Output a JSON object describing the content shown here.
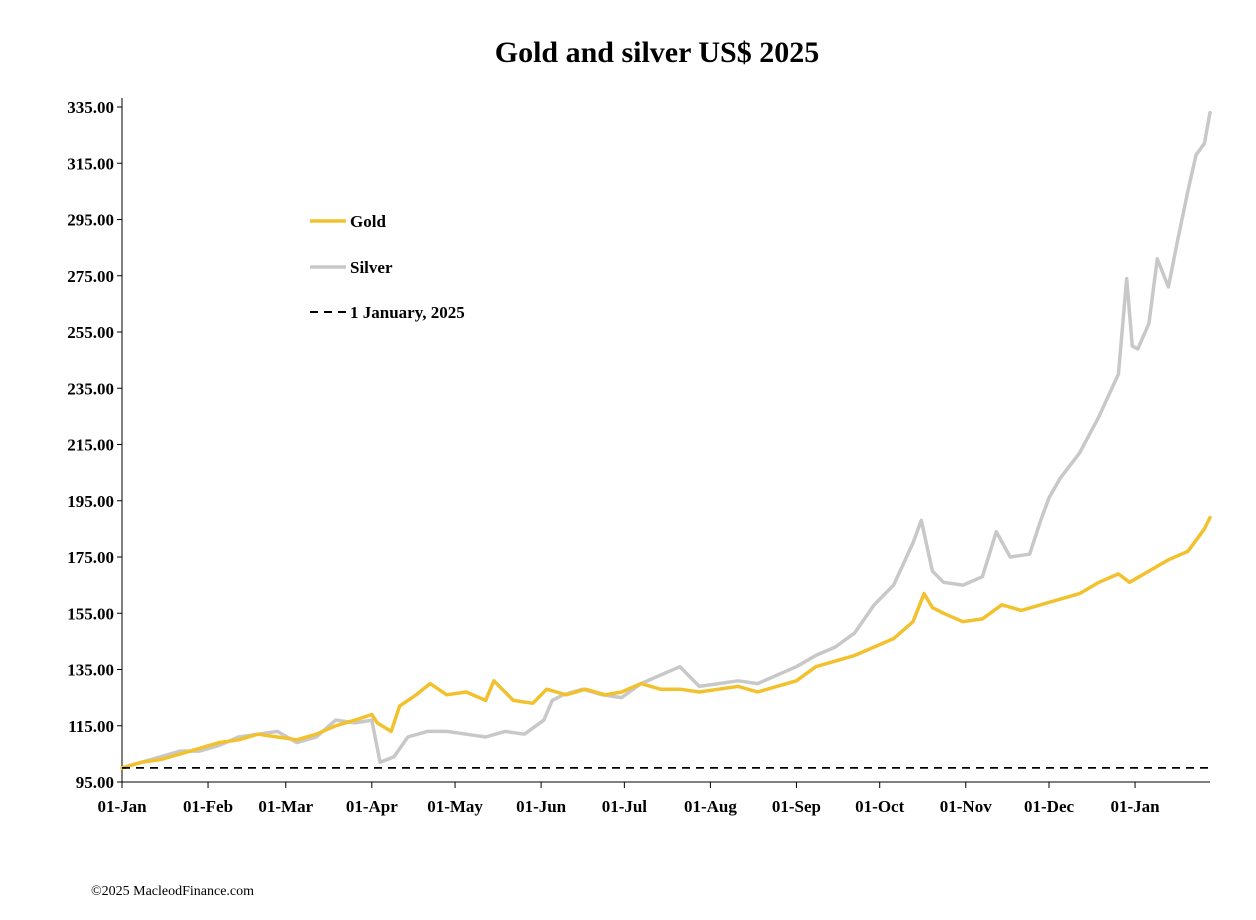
{
  "chart_data": {
    "type": "line",
    "title": "Gold and silver  US$ 2025",
    "xlabel": "",
    "ylabel": "",
    "y_tick_labels": [
      "95.00",
      "115.00",
      "135.00",
      "155.00",
      "175.00",
      "195.00",
      "215.00",
      "235.00",
      "255.00",
      "275.00",
      "295.00",
      "315.00",
      "335.00"
    ],
    "ylim": [
      95,
      335
    ],
    "x_tick_labels": [
      "01-Jan",
      "01-Feb",
      "01-Mar",
      "01-Apr",
      "01-May",
      "01-Jun",
      "01-Jul",
      "01-Aug",
      "01-Sep",
      "01-Oct",
      "01-Nov",
      "01-Dec",
      "01-Jan"
    ],
    "x_tick_dates": [
      "2025-01-01",
      "2025-02-01",
      "2025-03-01",
      "2025-04-01",
      "2025-05-01",
      "2025-06-01",
      "2025-07-01",
      "2025-08-01",
      "2025-09-01",
      "2025-10-01",
      "2025-11-01",
      "2025-12-01",
      "2026-01-01"
    ],
    "xlim": [
      "2025-01-01",
      "2026-01-28"
    ],
    "grid": false,
    "legend_position": "upper-left",
    "series": [
      {
        "name": "Gold",
        "color": "#F2C12E",
        "style": "solid",
        "points": [
          [
            "2025-01-01",
            100
          ],
          [
            "2025-01-08",
            102
          ],
          [
            "2025-01-15",
            103
          ],
          [
            "2025-01-22",
            105
          ],
          [
            "2025-01-29",
            107
          ],
          [
            "2025-02-05",
            109
          ],
          [
            "2025-02-12",
            110
          ],
          [
            "2025-02-19",
            112
          ],
          [
            "2025-02-26",
            111
          ],
          [
            "2025-03-05",
            110
          ],
          [
            "2025-03-12",
            112
          ],
          [
            "2025-03-19",
            115
          ],
          [
            "2025-03-26",
            117
          ],
          [
            "2025-04-01",
            119
          ],
          [
            "2025-04-03",
            116
          ],
          [
            "2025-04-08",
            113
          ],
          [
            "2025-04-11",
            122
          ],
          [
            "2025-04-17",
            126
          ],
          [
            "2025-04-22",
            130
          ],
          [
            "2025-04-28",
            126
          ],
          [
            "2025-05-05",
            127
          ],
          [
            "2025-05-12",
            124
          ],
          [
            "2025-05-15",
            131
          ],
          [
            "2025-05-22",
            124
          ],
          [
            "2025-05-29",
            123
          ],
          [
            "2025-06-03",
            128
          ],
          [
            "2025-06-10",
            126
          ],
          [
            "2025-06-17",
            128
          ],
          [
            "2025-06-24",
            126
          ],
          [
            "2025-06-30",
            127
          ],
          [
            "2025-07-07",
            130
          ],
          [
            "2025-07-14",
            128
          ],
          [
            "2025-07-21",
            128
          ],
          [
            "2025-07-28",
            127
          ],
          [
            "2025-08-04",
            128
          ],
          [
            "2025-08-11",
            129
          ],
          [
            "2025-08-18",
            127
          ],
          [
            "2025-08-25",
            129
          ],
          [
            "2025-09-01",
            131
          ],
          [
            "2025-09-08",
            136
          ],
          [
            "2025-09-15",
            138
          ],
          [
            "2025-09-22",
            140
          ],
          [
            "2025-09-29",
            143
          ],
          [
            "2025-10-06",
            146
          ],
          [
            "2025-10-13",
            152
          ],
          [
            "2025-10-17",
            162
          ],
          [
            "2025-10-20",
            157
          ],
          [
            "2025-10-24",
            155
          ],
          [
            "2025-10-31",
            152
          ],
          [
            "2025-11-07",
            153
          ],
          [
            "2025-11-14",
            158
          ],
          [
            "2025-11-21",
            156
          ],
          [
            "2025-11-28",
            158
          ],
          [
            "2025-12-05",
            160
          ],
          [
            "2025-12-12",
            162
          ],
          [
            "2025-12-19",
            166
          ],
          [
            "2025-12-26",
            169
          ],
          [
            "2025-12-30",
            166
          ],
          [
            "2026-01-06",
            170
          ],
          [
            "2026-01-13",
            174
          ],
          [
            "2026-01-20",
            177
          ],
          [
            "2026-01-26",
            185
          ],
          [
            "2026-01-28",
            189
          ]
        ]
      },
      {
        "name": "Silver",
        "color": "#C8C8C8",
        "style": "solid",
        "points": [
          [
            "2025-01-01",
            100
          ],
          [
            "2025-01-08",
            102
          ],
          [
            "2025-01-15",
            104
          ],
          [
            "2025-01-22",
            106
          ],
          [
            "2025-01-29",
            106
          ],
          [
            "2025-02-05",
            108
          ],
          [
            "2025-02-12",
            111
          ],
          [
            "2025-02-19",
            112
          ],
          [
            "2025-02-26",
            113
          ],
          [
            "2025-03-05",
            109
          ],
          [
            "2025-03-12",
            111
          ],
          [
            "2025-03-19",
            117
          ],
          [
            "2025-03-26",
            116
          ],
          [
            "2025-04-01",
            117
          ],
          [
            "2025-04-04",
            102
          ],
          [
            "2025-04-09",
            104
          ],
          [
            "2025-04-14",
            111
          ],
          [
            "2025-04-21",
            113
          ],
          [
            "2025-04-28",
            113
          ],
          [
            "2025-05-05",
            112
          ],
          [
            "2025-05-12",
            111
          ],
          [
            "2025-05-19",
            113
          ],
          [
            "2025-05-26",
            112
          ],
          [
            "2025-06-02",
            117
          ],
          [
            "2025-06-05",
            124
          ],
          [
            "2025-06-09",
            126
          ],
          [
            "2025-06-16",
            128
          ],
          [
            "2025-06-23",
            126
          ],
          [
            "2025-06-30",
            125
          ],
          [
            "2025-07-07",
            130
          ],
          [
            "2025-07-14",
            133
          ],
          [
            "2025-07-21",
            136
          ],
          [
            "2025-07-28",
            129
          ],
          [
            "2025-08-04",
            130
          ],
          [
            "2025-08-11",
            131
          ],
          [
            "2025-08-18",
            130
          ],
          [
            "2025-08-25",
            133
          ],
          [
            "2025-09-01",
            136
          ],
          [
            "2025-09-08",
            140
          ],
          [
            "2025-09-15",
            143
          ],
          [
            "2025-09-22",
            148
          ],
          [
            "2025-09-29",
            158
          ],
          [
            "2025-10-06",
            165
          ],
          [
            "2025-10-13",
            180
          ],
          [
            "2025-10-16",
            188
          ],
          [
            "2025-10-20",
            170
          ],
          [
            "2025-10-24",
            166
          ],
          [
            "2025-10-31",
            165
          ],
          [
            "2025-11-07",
            168
          ],
          [
            "2025-11-12",
            184
          ],
          [
            "2025-11-17",
            175
          ],
          [
            "2025-11-24",
            176
          ],
          [
            "2025-11-28",
            188
          ],
          [
            "2025-12-01",
            196
          ],
          [
            "2025-12-05",
            203
          ],
          [
            "2025-12-12",
            212
          ],
          [
            "2025-12-19",
            225
          ],
          [
            "2025-12-26",
            240
          ],
          [
            "2025-12-29",
            274
          ],
          [
            "2025-12-31",
            250
          ],
          [
            "2026-01-02",
            249
          ],
          [
            "2026-01-06",
            258
          ],
          [
            "2026-01-09",
            281
          ],
          [
            "2026-01-13",
            271
          ],
          [
            "2026-01-16",
            286
          ],
          [
            "2026-01-20",
            305
          ],
          [
            "2026-01-23",
            318
          ],
          [
            "2026-01-26",
            322
          ],
          [
            "2026-01-28",
            333
          ]
        ]
      },
      {
        "name": "1 January, 2025",
        "color": "#000000",
        "style": "dashed",
        "points": [
          [
            "2025-01-01",
            100
          ],
          [
            "2026-01-28",
            100
          ]
        ]
      }
    ],
    "legend": [
      {
        "label": "Gold",
        "color": "#F2C12E",
        "style": "solid"
      },
      {
        "label": "Silver",
        "color": "#C8C8C8",
        "style": "solid"
      },
      {
        "label": "1 January, 2025",
        "color": "#000000",
        "style": "dashed"
      }
    ]
  },
  "footer": {
    "copyright": "©2025 MacleodFinance.com"
  }
}
